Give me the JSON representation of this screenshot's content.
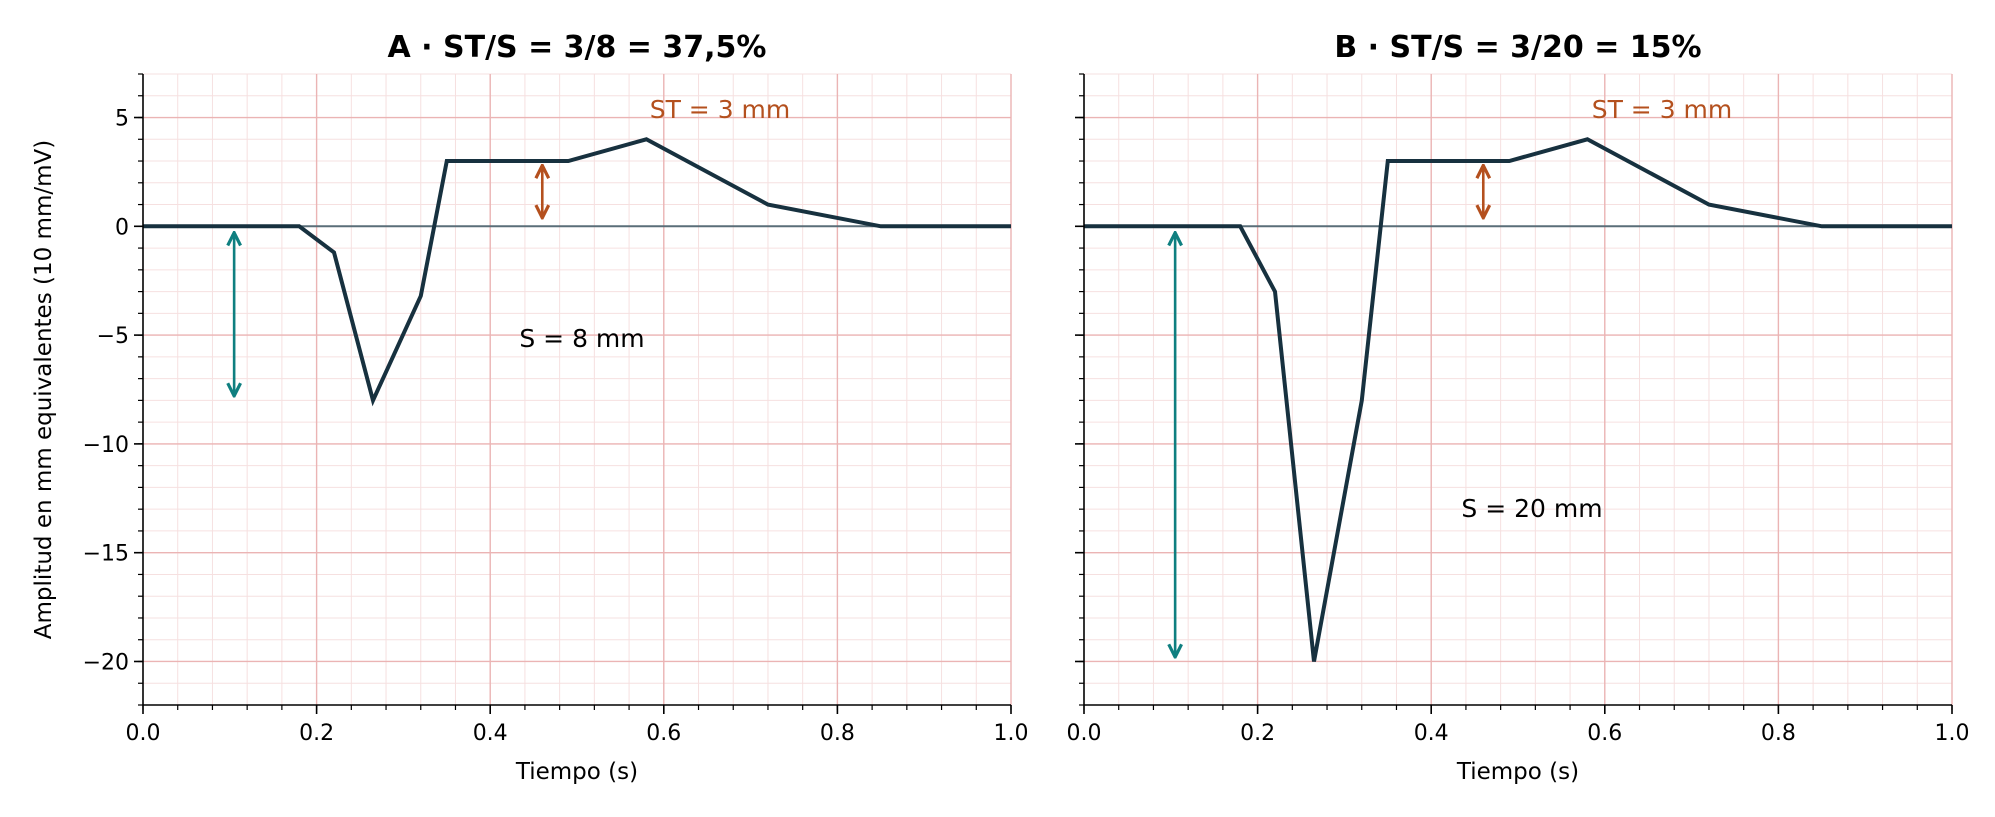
{
  "colors": {
    "trace": "#17313f",
    "baseline": "#5a6e78",
    "grid_major": "#ebb4b4",
    "grid_minor": "#f6e0e0",
    "st_arrow": "#b4501e",
    "s_arrow": "#0f7f80",
    "axis": "#000000"
  },
  "shared": {
    "ylabel": "Amplitud en mm equivalentes (10 mm/mV)",
    "xlabel": "Tiempo (s)"
  },
  "chart_data": [
    {
      "type": "line",
      "title": "A · ST/S = 3/8 = 37,5%",
      "xlabel": "Tiempo (s)",
      "ylabel": "Amplitud en mm equivalentes (10 mm/mV)",
      "xlim": [
        0,
        1
      ],
      "ylim": [
        -22,
        7
      ],
      "x_ticks": [
        "0.0",
        "0.2",
        "0.4",
        "0.6",
        "0.8",
        "1.0"
      ],
      "y_ticks": [
        "5",
        "0",
        "−5",
        "−10",
        "−15",
        "−20"
      ],
      "grid": true,
      "series": [
        {
          "x": [
            0,
            0.18,
            0.22,
            0.265,
            0.32,
            0.35,
            0.49,
            0.58,
            0.72,
            0.85,
            1.0
          ],
          "y": [
            0,
            0,
            -1.2,
            -8,
            -3.2,
            3,
            3,
            4,
            1,
            0,
            0
          ]
        }
      ],
      "st_label": "ST = 3 mm",
      "st_arrow": {
        "x": 0.46,
        "y_from": 0,
        "y_to": 3
      },
      "s_label": "S = 8 mm",
      "s_arrow": {
        "x": 0.105,
        "y_from": 0,
        "y_to": -8
      }
    },
    {
      "type": "line",
      "title": "B · ST/S = 3/20 = 15%",
      "xlabel": "Tiempo (s)",
      "ylabel": "",
      "xlim": [
        0,
        1
      ],
      "ylim": [
        -22,
        7
      ],
      "x_ticks": [
        "0.0",
        "0.2",
        "0.4",
        "0.6",
        "0.8",
        "1.0"
      ],
      "y_ticks": [],
      "grid": true,
      "series": [
        {
          "x": [
            0,
            0.18,
            0.22,
            0.265,
            0.32,
            0.35,
            0.49,
            0.58,
            0.72,
            0.85,
            1.0
          ],
          "y": [
            0,
            0,
            -3,
            -20,
            -8,
            3,
            3,
            4,
            1,
            0,
            0
          ]
        }
      ],
      "st_label": "ST = 3 mm",
      "st_arrow": {
        "x": 0.46,
        "y_from": 0,
        "y_to": 3
      },
      "s_label": "S = 20 mm",
      "s_arrow": {
        "x": 0.105,
        "y_from": 0,
        "y_to": -20
      }
    }
  ]
}
